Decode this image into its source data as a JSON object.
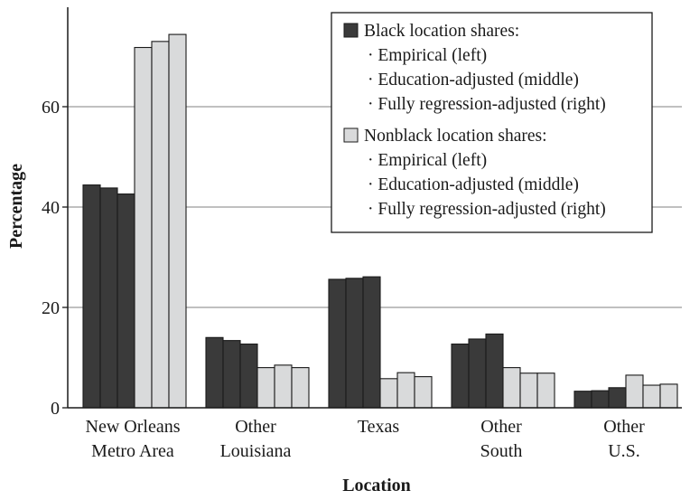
{
  "chart_data": {
    "type": "bar",
    "xlabel": "Location",
    "ylabel": "Percentage",
    "ylim": [
      0,
      78
    ],
    "yticks": [
      0,
      20,
      40,
      60
    ],
    "grid": true,
    "legend_position": "top-right",
    "categories": [
      [
        "New Orleans",
        "Metro Area"
      ],
      [
        "Other",
        "Louisiana"
      ],
      [
        "Texas"
      ],
      [
        "Other",
        "South"
      ],
      [
        "Other",
        "U.S."
      ]
    ],
    "series": [
      {
        "name": "Black location shares: Empirical (left)",
        "group": "black",
        "color": "#3a3a3a",
        "values": [
          44.4,
          14.0,
          25.6,
          12.7,
          3.3
        ]
      },
      {
        "name": "Black location shares: Education-adjusted (middle)",
        "group": "black",
        "color": "#3a3a3a",
        "values": [
          43.8,
          13.4,
          25.8,
          13.7,
          3.4
        ]
      },
      {
        "name": "Black location shares: Fully regression-adjusted (right)",
        "group": "black",
        "color": "#3a3a3a",
        "values": [
          42.6,
          12.7,
          26.1,
          14.7,
          4.0
        ]
      },
      {
        "name": "Nonblack location shares: Empirical (left)",
        "group": "nonblack",
        "color": "#d9dadb",
        "values": [
          71.8,
          8.0,
          5.8,
          8.0,
          6.5
        ]
      },
      {
        "name": "Nonblack location shares: Education-adjusted (middle)",
        "group": "nonblack",
        "color": "#d9dadb",
        "values": [
          73.0,
          8.5,
          7.0,
          6.9,
          4.5
        ]
      },
      {
        "name": "Nonblack location shares: Fully regression-adjusted (right)",
        "group": "nonblack",
        "color": "#d9dadb",
        "values": [
          74.4,
          8.0,
          6.2,
          6.9,
          4.7
        ]
      }
    ],
    "legend": {
      "groups": [
        {
          "title": "Black location shares:",
          "color": "#3a3a3a",
          "items": [
            "· Empirical (left)",
            "· Education-adjusted (middle)",
            "· Fully regression-adjusted (right)"
          ]
        },
        {
          "title": "Nonblack location shares:",
          "color": "#d9dadb",
          "items": [
            "· Empirical (left)",
            "· Education-adjusted (middle)",
            "· Fully regression-adjusted (right)"
          ]
        }
      ]
    }
  }
}
